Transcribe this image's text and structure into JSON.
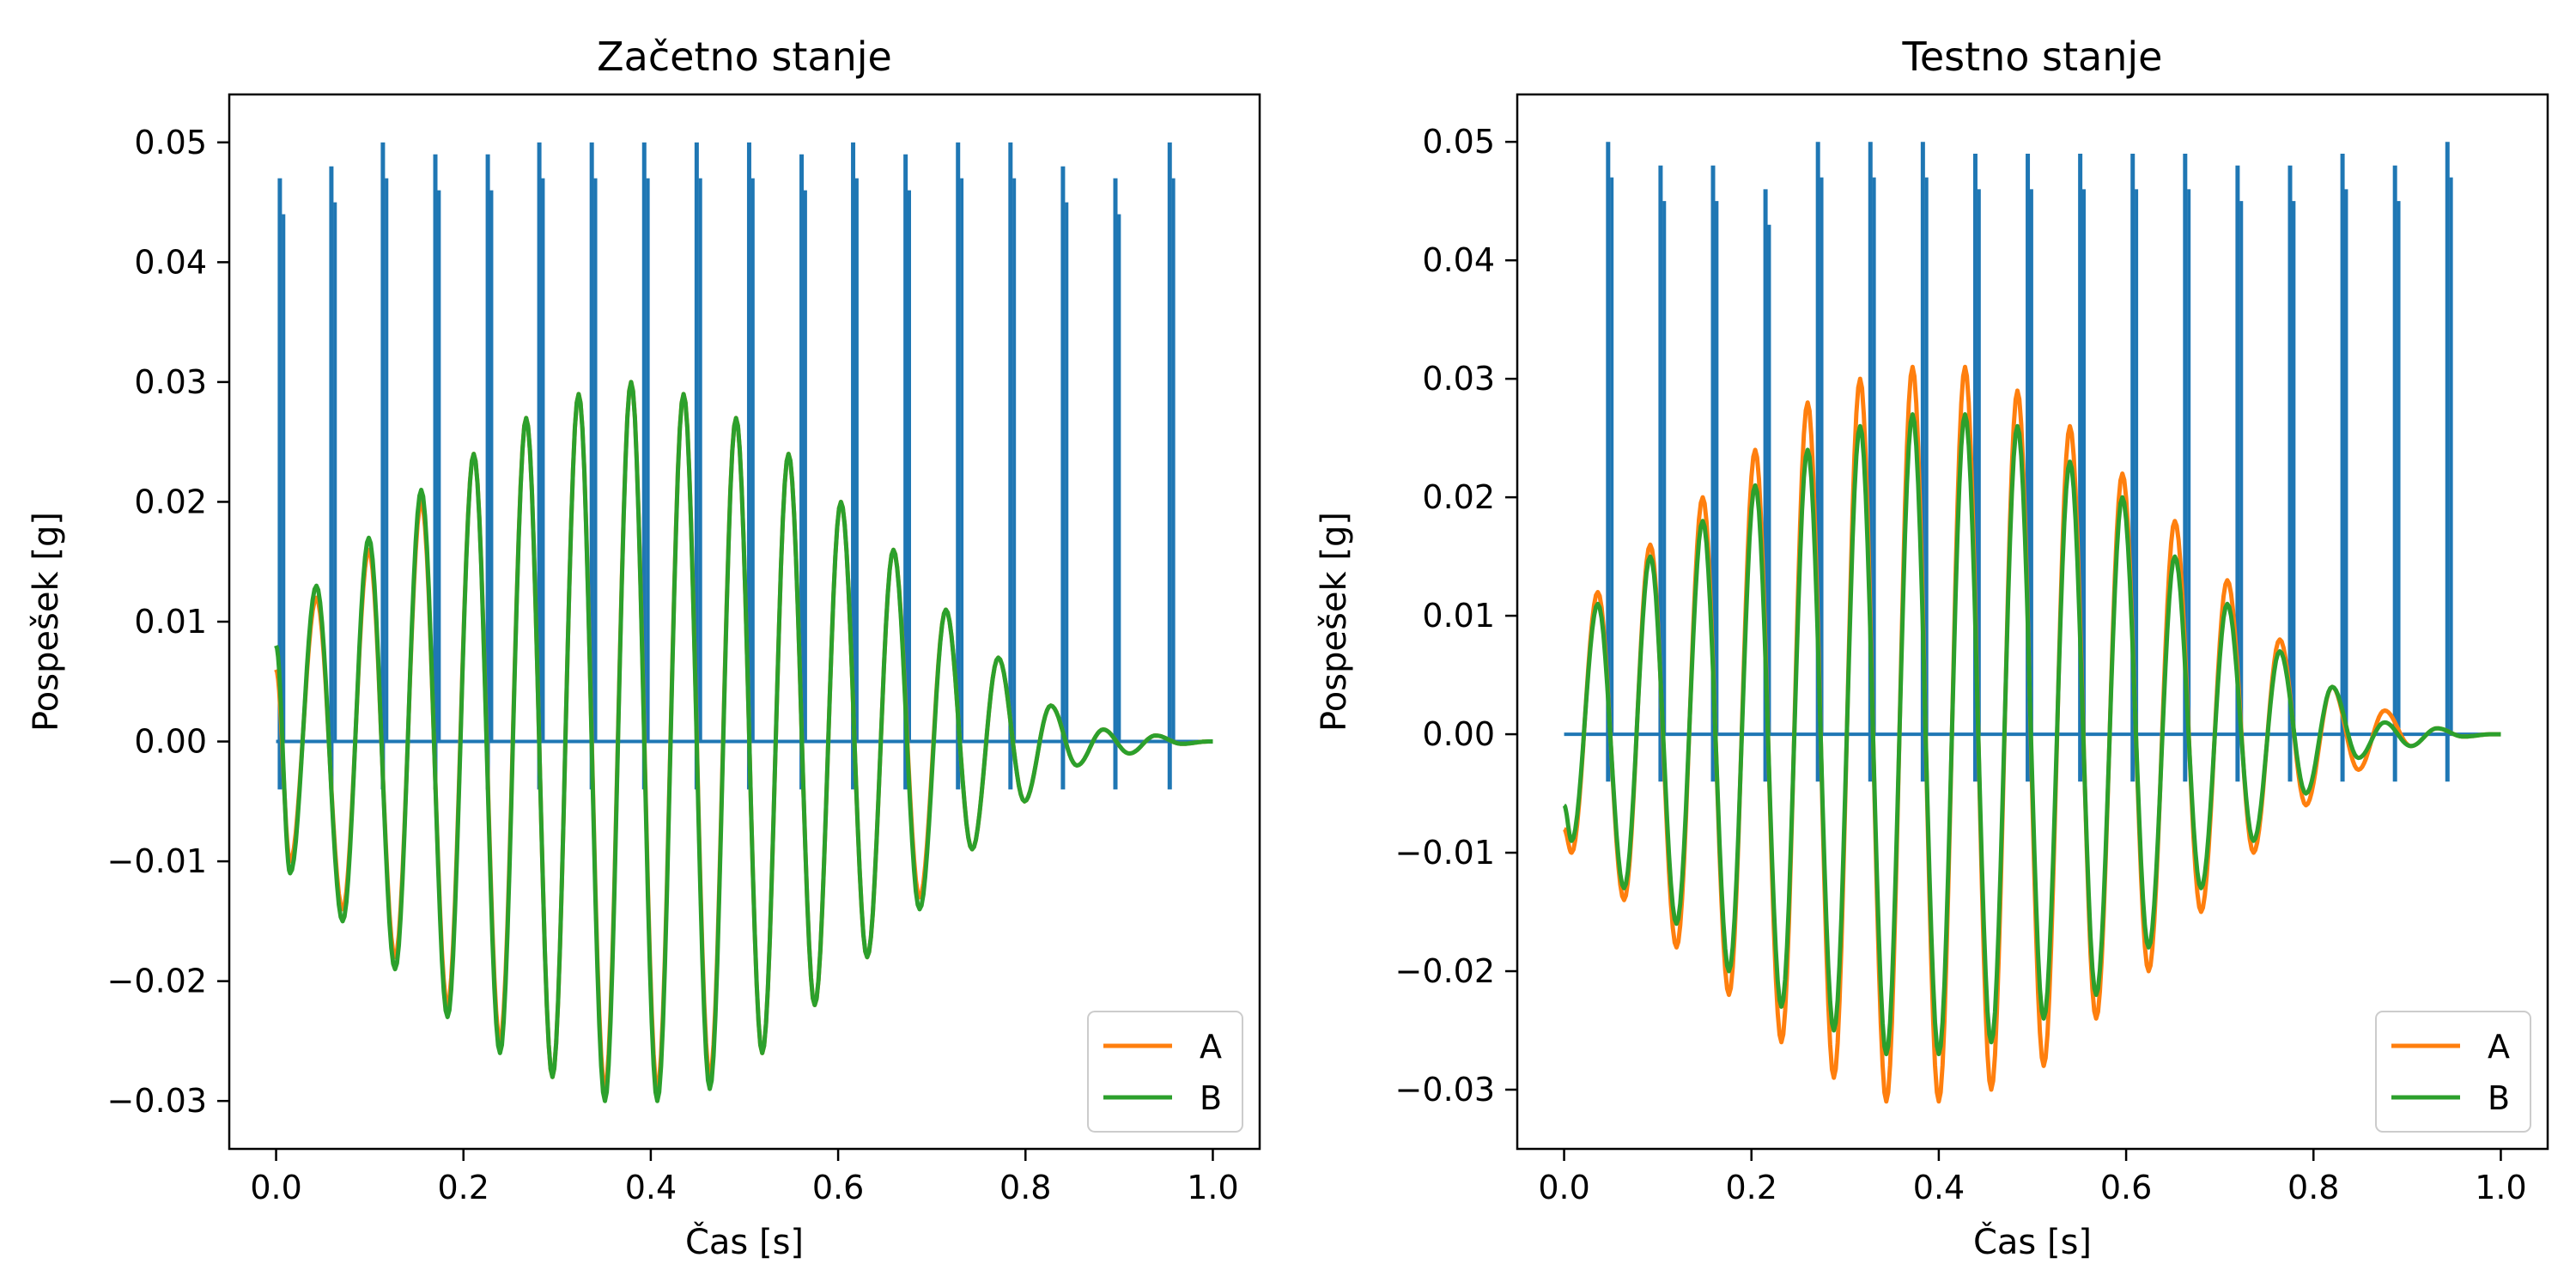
{
  "colors": {
    "pulse": "#1f77b4",
    "A": "#ff7f0e",
    "B": "#2ca02c",
    "axes": "#000000",
    "background": "#ffffff"
  },
  "chart_data": [
    {
      "type": "line",
      "title": "Začetno stanje",
      "xlabel": "Čas [s]",
      "ylabel": "Pospešek [g]",
      "xlim": [
        -0.05,
        1.05
      ],
      "ylim": [
        -0.034,
        0.054
      ],
      "xticks": [
        0.0,
        0.2,
        0.4,
        0.6,
        0.8,
        1.0
      ],
      "xtick_labels": [
        "0.0",
        "0.2",
        "0.4",
        "0.6",
        "0.8",
        "1.0"
      ],
      "yticks": [
        -0.03,
        -0.02,
        -0.01,
        0.0,
        0.01,
        0.02,
        0.03,
        0.04,
        0.05
      ],
      "ytick_labels": [
        "−0.03",
        "−0.02",
        "−0.01",
        "0.00",
        "0.01",
        "0.02",
        "0.03",
        "0.04",
        "0.05"
      ],
      "grid": false,
      "legend": {
        "position": "lower-right",
        "entries": [
          "A",
          "B"
        ]
      },
      "pulse_series": {
        "times": [
          0.004,
          0.059,
          0.114,
          0.17,
          0.226,
          0.281,
          0.337,
          0.393,
          0.449,
          0.505,
          0.561,
          0.616,
          0.672,
          0.728,
          0.784,
          0.84,
          0.896,
          0.954
        ],
        "peak_values": [
          0.047,
          0.048,
          0.05,
          0.049,
          0.049,
          0.05,
          0.05,
          0.05,
          0.05,
          0.05,
          0.049,
          0.05,
          0.049,
          0.05,
          0.05,
          0.048,
          0.047,
          0.05
        ],
        "min_value": -0.004
      },
      "series": [
        {
          "name": "A",
          "start_value": 0.006,
          "peaks_x": [
            0.015,
            0.043,
            0.071,
            0.099,
            0.127,
            0.155,
            0.183,
            0.211,
            0.239,
            0.267,
            0.295,
            0.323,
            0.351,
            0.379,
            0.407,
            0.435,
            0.463,
            0.491,
            0.519,
            0.547,
            0.575,
            0.603,
            0.631,
            0.659,
            0.687,
            0.715,
            0.743,
            0.771,
            0.799,
            0.827,
            0.855,
            0.883,
            0.911,
            0.939,
            0.967,
            0.995
          ],
          "peaks_y": [
            -0.01,
            0.012,
            -0.014,
            0.016,
            -0.018,
            0.02,
            -0.022,
            0.024,
            -0.025,
            0.027,
            -0.028,
            0.029,
            -0.029,
            0.03,
            -0.029,
            0.029,
            -0.028,
            0.027,
            -0.026,
            0.024,
            -0.022,
            0.02,
            -0.018,
            0.016,
            -0.013,
            0.011,
            -0.009,
            0.007,
            -0.005,
            0.003,
            -0.002,
            0.001,
            -0.001,
            0.0005,
            -0.0002,
            0.0
          ]
        },
        {
          "name": "B",
          "start_value": 0.008,
          "peaks_x": [
            0.015,
            0.043,
            0.071,
            0.099,
            0.127,
            0.155,
            0.183,
            0.211,
            0.239,
            0.267,
            0.295,
            0.323,
            0.351,
            0.379,
            0.407,
            0.435,
            0.463,
            0.491,
            0.519,
            0.547,
            0.575,
            0.603,
            0.631,
            0.659,
            0.687,
            0.715,
            0.743,
            0.771,
            0.799,
            0.827,
            0.855,
            0.883,
            0.911,
            0.939,
            0.967,
            0.995
          ],
          "peaks_y": [
            -0.011,
            0.013,
            -0.015,
            0.017,
            -0.019,
            0.021,
            -0.023,
            0.024,
            -0.026,
            0.027,
            -0.028,
            0.029,
            -0.03,
            0.03,
            -0.03,
            0.029,
            -0.029,
            0.027,
            -0.026,
            0.024,
            -0.022,
            0.02,
            -0.018,
            0.016,
            -0.014,
            0.011,
            -0.009,
            0.007,
            -0.005,
            0.003,
            -0.002,
            0.001,
            -0.001,
            0.0005,
            -0.0002,
            0.0
          ]
        }
      ]
    },
    {
      "type": "line",
      "title": "Testno stanje",
      "xlabel": "Čas [s]",
      "ylabel": "Pospešek [g]",
      "xlim": [
        -0.05,
        1.05
      ],
      "ylim": [
        -0.035,
        0.054
      ],
      "xticks": [
        0.0,
        0.2,
        0.4,
        0.6,
        0.8,
        1.0
      ],
      "xtick_labels": [
        "0.0",
        "0.2",
        "0.4",
        "0.6",
        "0.8",
        "1.0"
      ],
      "yticks": [
        -0.03,
        -0.02,
        -0.01,
        0.0,
        0.01,
        0.02,
        0.03,
        0.04,
        0.05
      ],
      "ytick_labels": [
        "−0.03",
        "−0.02",
        "−0.01",
        "0.00",
        "0.01",
        "0.02",
        "0.03",
        "0.04",
        "0.05"
      ],
      "grid": false,
      "legend": {
        "position": "lower-right",
        "entries": [
          "A",
          "B"
        ]
      },
      "pulse_series": {
        "times": [
          0.047,
          0.103,
          0.159,
          0.215,
          0.271,
          0.327,
          0.383,
          0.439,
          0.495,
          0.551,
          0.607,
          0.663,
          0.719,
          0.775,
          0.831,
          0.887,
          0.943
        ],
        "peak_values": [
          0.05,
          0.048,
          0.048,
          0.046,
          0.05,
          0.05,
          0.05,
          0.049,
          0.049,
          0.049,
          0.049,
          0.049,
          0.048,
          0.048,
          0.049,
          0.048,
          0.05
        ],
        "min_value": -0.004
      },
      "series": [
        {
          "name": "A",
          "start_value": -0.008,
          "peaks_x": [
            0.008,
            0.036,
            0.064,
            0.092,
            0.12,
            0.148,
            0.176,
            0.204,
            0.232,
            0.26,
            0.288,
            0.316,
            0.344,
            0.372,
            0.4,
            0.428,
            0.456,
            0.484,
            0.512,
            0.54,
            0.568,
            0.596,
            0.624,
            0.652,
            0.68,
            0.708,
            0.736,
            0.764,
            0.792,
            0.82,
            0.848,
            0.876,
            0.904,
            0.932,
            0.96,
            0.99
          ],
          "peaks_y": [
            -0.01,
            0.012,
            -0.014,
            0.016,
            -0.018,
            0.02,
            -0.022,
            0.024,
            -0.026,
            0.028,
            -0.029,
            0.03,
            -0.031,
            0.031,
            -0.031,
            0.031,
            -0.03,
            0.029,
            -0.028,
            0.026,
            -0.024,
            0.022,
            -0.02,
            0.018,
            -0.015,
            0.013,
            -0.01,
            0.008,
            -0.006,
            0.004,
            -0.003,
            0.002,
            -0.001,
            0.0005,
            -0.0002,
            0.0
          ]
        },
        {
          "name": "B",
          "start_value": -0.006,
          "peaks_x": [
            0.008,
            0.036,
            0.064,
            0.092,
            0.12,
            0.148,
            0.176,
            0.204,
            0.232,
            0.26,
            0.288,
            0.316,
            0.344,
            0.372,
            0.4,
            0.428,
            0.456,
            0.484,
            0.512,
            0.54,
            0.568,
            0.596,
            0.624,
            0.652,
            0.68,
            0.708,
            0.736,
            0.764,
            0.792,
            0.82,
            0.848,
            0.876,
            0.904,
            0.932,
            0.96,
            0.99
          ],
          "peaks_y": [
            -0.009,
            0.011,
            -0.013,
            0.015,
            -0.016,
            0.018,
            -0.02,
            0.021,
            -0.023,
            0.024,
            -0.025,
            0.026,
            -0.027,
            0.027,
            -0.027,
            0.027,
            -0.026,
            0.026,
            -0.024,
            0.023,
            -0.022,
            0.02,
            -0.018,
            0.015,
            -0.013,
            0.011,
            -0.009,
            0.007,
            -0.005,
            0.004,
            -0.002,
            0.001,
            -0.001,
            0.0005,
            -0.0002,
            0.0
          ]
        }
      ]
    }
  ]
}
